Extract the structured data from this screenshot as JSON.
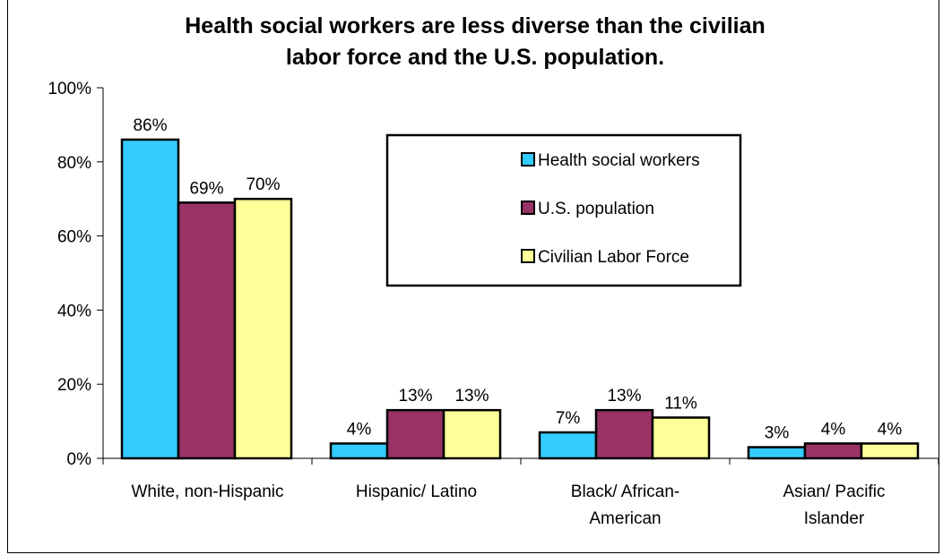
{
  "chart_data": {
    "type": "bar",
    "title_lines": [
      "Health social workers are less diverse than the civilian",
      "labor force and the U.S. population."
    ],
    "categories": [
      [
        "White, non-Hispanic"
      ],
      [
        "Hispanic/ Latino"
      ],
      [
        "Black/ African-",
        "American"
      ],
      [
        "Asian/ Pacific",
        "Islander"
      ]
    ],
    "series": [
      {
        "name": "Health social workers",
        "color": "#33ccff",
        "values": [
          86,
          4,
          7,
          3
        ],
        "labels": [
          "86%",
          "4%",
          "7%",
          "3%"
        ]
      },
      {
        "name": "U.S. population",
        "color": "#993366",
        "values": [
          69,
          13,
          13,
          4
        ],
        "labels": [
          "69%",
          "13%",
          "13%",
          "4%"
        ]
      },
      {
        "name": "Civilian Labor Force",
        "color": "#ffff99",
        "values": [
          70,
          13,
          11,
          4
        ],
        "labels": [
          "70%",
          "13%",
          "11%",
          "4%"
        ]
      }
    ],
    "y_ticks": [
      0,
      20,
      40,
      60,
      80,
      100
    ],
    "y_tick_labels": [
      "0%",
      "20%",
      "40%",
      "60%",
      "80%",
      "100%"
    ],
    "ylim": [
      0,
      100
    ],
    "grid": false,
    "legend_position": "top-right"
  }
}
